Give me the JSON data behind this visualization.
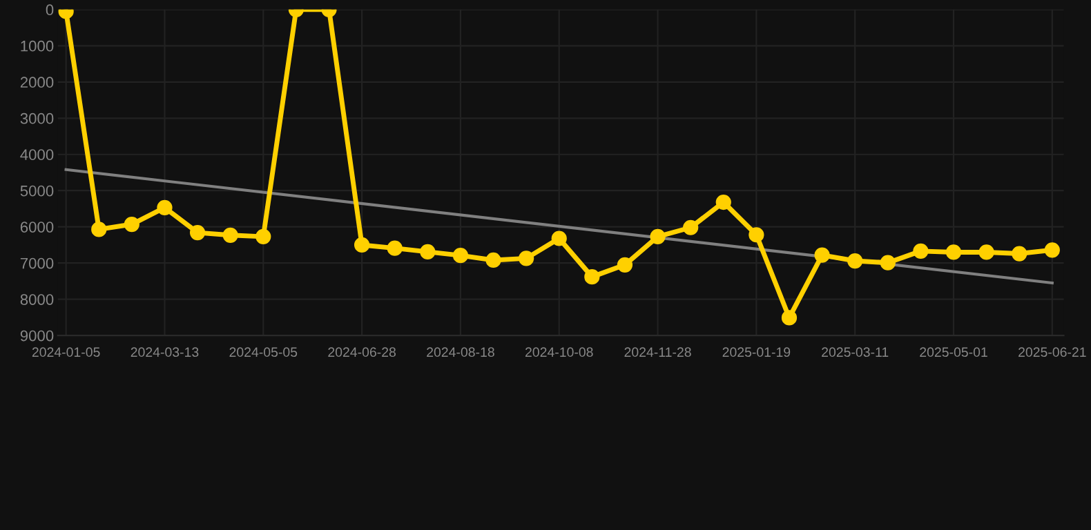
{
  "chart_data": {
    "type": "line",
    "categories": [
      "2024-01-05",
      null,
      null,
      "2024-03-13",
      null,
      null,
      "2024-05-05",
      null,
      null,
      "2024-06-28",
      null,
      null,
      "2024-08-18",
      null,
      null,
      "2024-10-08",
      null,
      null,
      "2024-11-28",
      null,
      null,
      "2025-01-19",
      null,
      null,
      "2025-03-11",
      null,
      null,
      "2025-05-01",
      null,
      null,
      "2025-06-21"
    ],
    "series": [
      {
        "color": "#ffd000",
        "marker": "circle",
        "values": [
          50,
          6070,
          5930,
          5470,
          6160,
          6230,
          6270,
          0,
          0,
          6500,
          6590,
          6690,
          6790,
          6920,
          6870,
          6320,
          7380,
          7050,
          6270,
          6020,
          5320,
          6220,
          8510,
          6780,
          6940,
          6990,
          6670,
          6700,
          6700,
          6740,
          6640
        ]
      },
      {
        "color": "#808080",
        "marker": "none",
        "values": [
          4420,
          null,
          null,
          null,
          null,
          null,
          null,
          null,
          null,
          null,
          null,
          null,
          null,
          null,
          null,
          null,
          null,
          null,
          null,
          null,
          null,
          null,
          null,
          null,
          null,
          null,
          null,
          null,
          null,
          null,
          7550
        ]
      }
    ],
    "ylim": [
      9000,
      0
    ],
    "yticks": [
      0,
      1000,
      2000,
      3000,
      4000,
      5000,
      6000,
      7000,
      8000,
      9000
    ],
    "grid": true
  }
}
